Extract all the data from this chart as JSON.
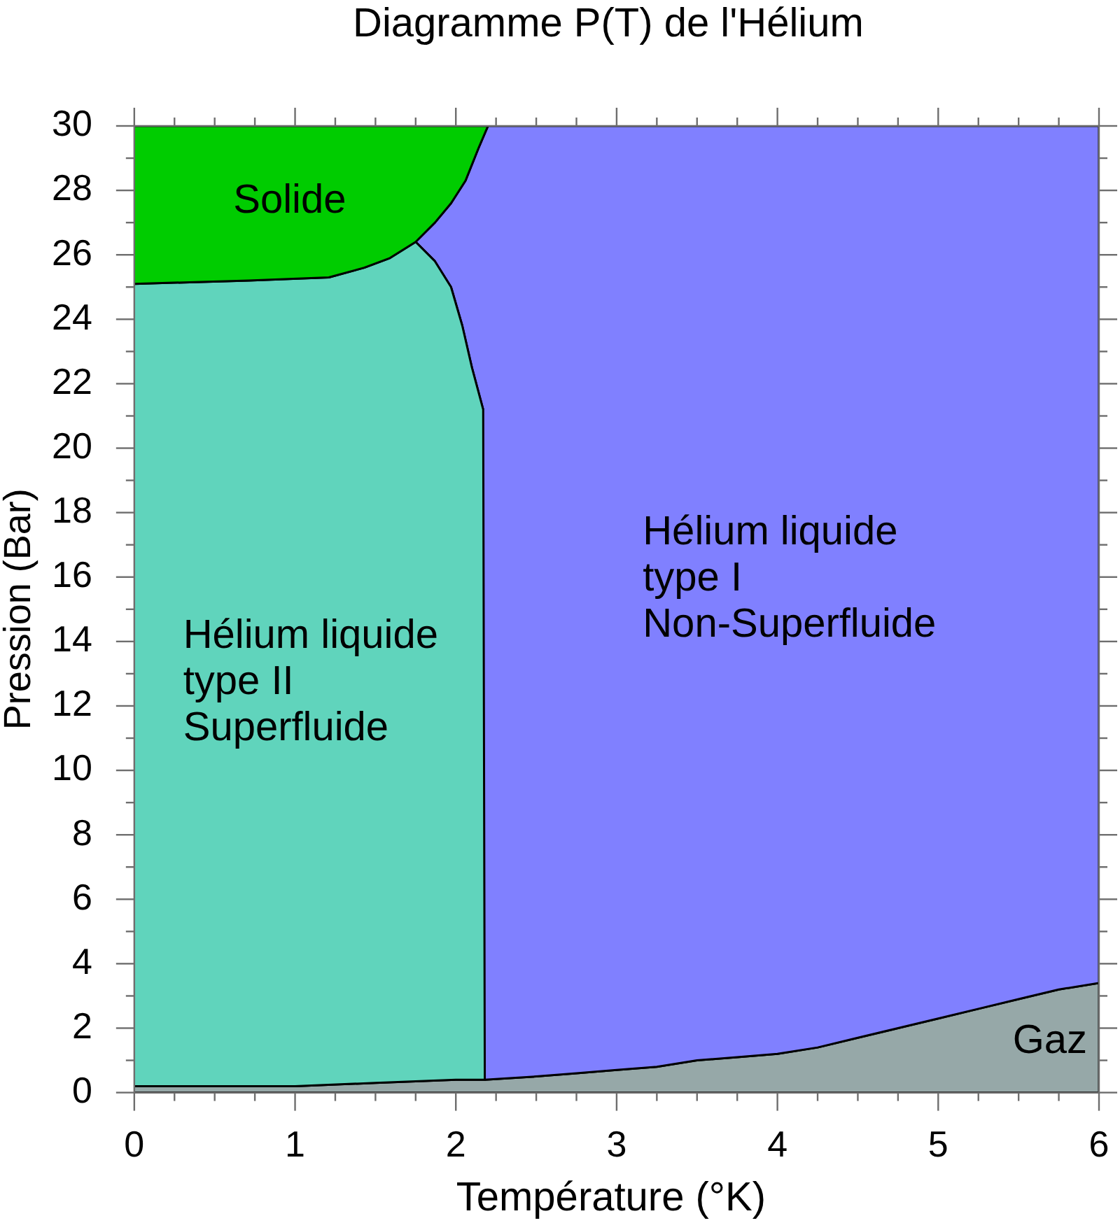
{
  "chart_data": {
    "type": "area",
    "title": "Diagramme P(T) de l'Hélium",
    "xlabel": "Température (°K)",
    "ylabel": "Pression (Bar)",
    "xlim": [
      0,
      6
    ],
    "ylim": [
      0,
      30
    ],
    "xticks": [
      0,
      {
        "value": 0.25,
        "label": null
      },
      {
        "value": 0.5,
        "label": null
      },
      {
        "value": 0.75,
        "label": null
      },
      1,
      {
        "value": 1.25,
        "label": null
      },
      {
        "value": 1.5,
        "label": null
      },
      {
        "value": 1.75,
        "label": null
      },
      2,
      {
        "value": 2.25,
        "label": null
      },
      {
        "value": 2.5,
        "label": null
      },
      {
        "value": 2.75,
        "label": null
      },
      3,
      {
        "value": 3.25,
        "label": null
      },
      {
        "value": 3.5,
        "label": null
      },
      {
        "value": 3.75,
        "label": null
      },
      4,
      {
        "value": 4.25,
        "label": null
      },
      {
        "value": 4.5,
        "label": null
      },
      {
        "value": 4.75,
        "label": null
      },
      5,
      {
        "value": 5.25,
        "label": null
      },
      {
        "value": 5.5,
        "label": null
      },
      {
        "value": 5.75,
        "label": null
      },
      6
    ],
    "yticks": [
      0,
      {
        "value": 1,
        "label": null
      },
      2,
      {
        "value": 3,
        "label": null
      },
      4,
      {
        "value": 5,
        "label": null
      },
      6,
      {
        "value": 7,
        "label": null
      },
      8,
      {
        "value": 9,
        "label": null
      },
      10,
      {
        "value": 11,
        "label": null
      },
      12,
      {
        "value": 13,
        "label": null
      },
      14,
      {
        "value": 15,
        "label": null
      },
      16,
      {
        "value": 17,
        "label": null
      },
      18,
      {
        "value": 19,
        "label": null
      },
      20,
      {
        "value": 21,
        "label": null
      },
      22,
      {
        "value": 23,
        "label": null
      },
      24,
      {
        "value": 25,
        "label": null
      },
      26,
      {
        "value": 27,
        "label": null
      },
      28,
      {
        "value": 29,
        "label": null
      },
      30
    ],
    "series": [
      {
        "name": "Solide",
        "color": "#00cc00",
        "x": [
          0,
          0.71,
          1.21,
          1.43,
          1.59,
          1.75,
          1.87,
          1.97,
          2.06,
          2.14,
          2.2,
          0
        ],
        "values": [
          25.1,
          25.2,
          25.3,
          25.6,
          25.9,
          26.4,
          27,
          27.6,
          28.3,
          29.3,
          30,
          30
        ]
      },
      {
        "name": "Hélium liquide\ntype II\nSuperfluide",
        "color": "#60d4bc",
        "x": [
          0,
          0.5,
          1,
          1.5,
          2,
          2.18,
          2.17,
          2.1,
          2.04,
          1.97,
          1.87,
          1.75,
          1.59,
          1.43,
          1.21,
          0.71,
          0
        ],
        "values": [
          0.2,
          0.2,
          0.2,
          0.3,
          0.4,
          0.4,
          21.2,
          22.5,
          23.8,
          25,
          25.8,
          26.4,
          25.9,
          25.6,
          25.3,
          25.2,
          25.1
        ]
      },
      {
        "name": "Hélium liquide\ntype I\nNon-Superfluide",
        "color": "#8080ff",
        "x": [
          2.18,
          2.5,
          2.75,
          3,
          3.25,
          3.5,
          3.75,
          4,
          4.25,
          4.5,
          4.75,
          5,
          5.25,
          5.5,
          5.75,
          6,
          6,
          2.2,
          2.14,
          2.06,
          1.97,
          1.87,
          1.75,
          1.87,
          1.97,
          2.04,
          2.1,
          2.17
        ],
        "values": [
          0.4,
          0.5,
          0.6,
          0.7,
          0.8,
          1,
          1.1,
          1.2,
          1.4,
          1.7,
          2,
          2.3,
          2.6,
          2.9,
          3.2,
          3.4,
          30,
          30,
          29.3,
          28.3,
          27.6,
          27,
          26.4,
          25.8,
          25,
          23.8,
          22.5,
          21.2
        ]
      },
      {
        "name": "Gaz",
        "color": "#96a8a8",
        "x": [
          0,
          0.5,
          1,
          1.5,
          2,
          2.18,
          2.5,
          2.75,
          3,
          3.25,
          3.5,
          3.75,
          4,
          4.25,
          4.5,
          4.75,
          5,
          5.25,
          5.5,
          5.75,
          6,
          6,
          0
        ],
        "values": [
          0.2,
          0.2,
          0.2,
          0.3,
          0.4,
          0.4,
          0.5,
          0.6,
          0.7,
          0.8,
          1,
          1.1,
          1.2,
          1.4,
          1.7,
          2,
          2.3,
          2.6,
          2.9,
          3.2,
          3.4,
          0,
          0
        ]
      }
    ]
  }
}
